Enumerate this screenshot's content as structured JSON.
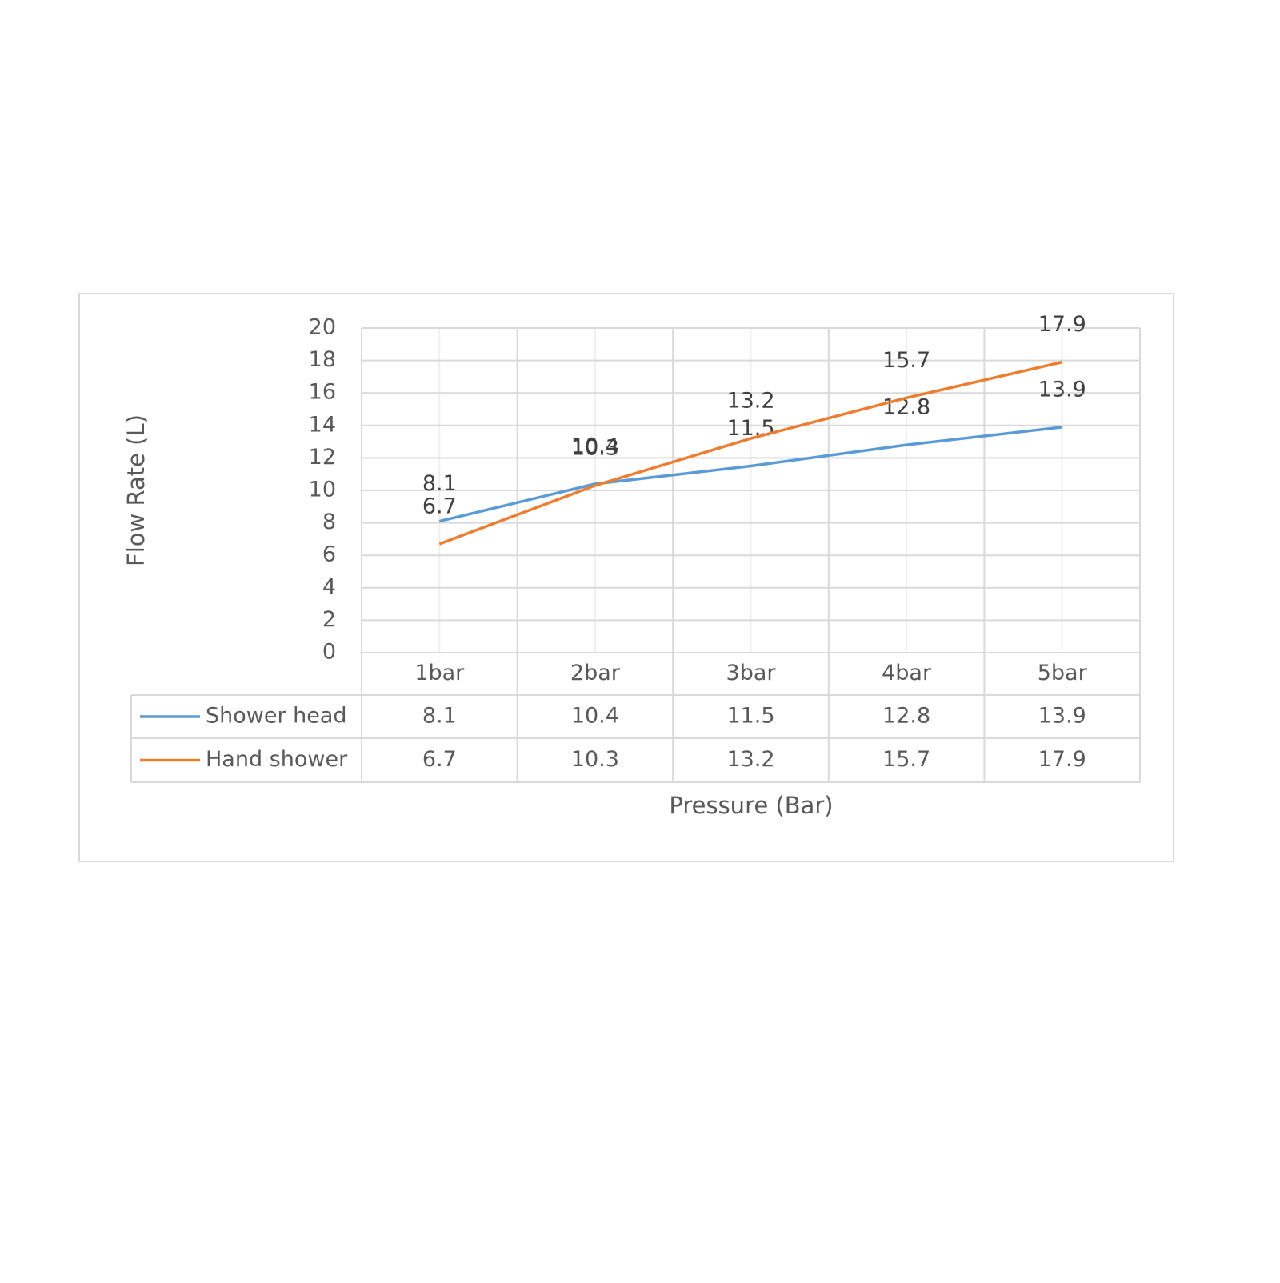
{
  "chart_data": {
    "type": "line",
    "x_label": "Pressure (Bar)",
    "y_label": "Flow Rate (L)",
    "categories": [
      "1bar",
      "2bar",
      "3bar",
      "4bar",
      "5bar"
    ],
    "series": [
      {
        "name": "Shower head",
        "color": "#5b9bd5",
        "values": [
          8.1,
          10.4,
          11.5,
          12.8,
          13.9
        ]
      },
      {
        "name": "Hand shower",
        "color": "#ed7d31",
        "values": [
          6.7,
          10.3,
          13.2,
          15.7,
          17.9
        ]
      }
    ],
    "ylim": [
      0,
      20
    ],
    "yticks": [
      0,
      2,
      4,
      6,
      8,
      10,
      12,
      14,
      16,
      18,
      20
    ],
    "grid": true,
    "data_labels": true,
    "data_table": true
  }
}
